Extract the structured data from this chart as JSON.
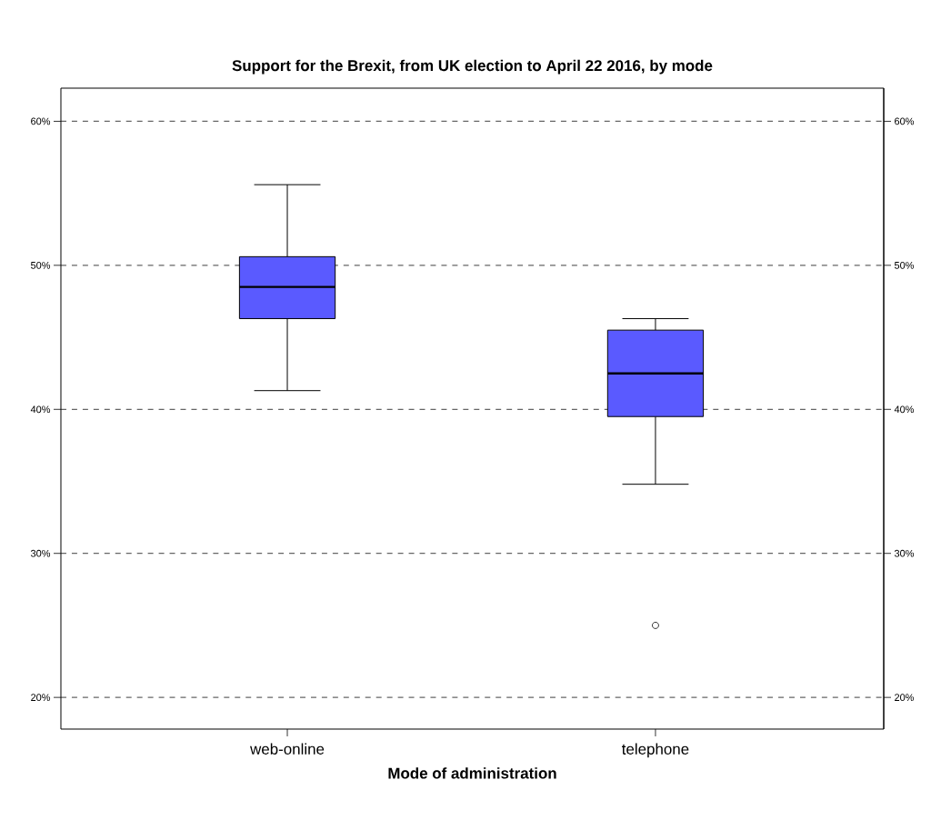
{
  "chart_data": {
    "type": "box",
    "title": "Support for the Brexit, from UK election to April 22 2016, by mode",
    "xlabel": "Mode of administration",
    "categories": [
      "web-online",
      "telephone"
    ],
    "color": "#5a5aff",
    "boxes": [
      {
        "low": 41.3,
        "q1": 46.3,
        "median": 48.5,
        "q3": 50.6,
        "high": 55.6
      },
      {
        "low": 34.8,
        "q1": 39.5,
        "median": 42.5,
        "q3": 45.5,
        "high": 46.3,
        "outliers": [
          25.0
        ]
      }
    ],
    "ylim": [
      17.8,
      62.3
    ],
    "yticks": [
      {
        "value": 20,
        "label": "20%"
      },
      {
        "value": 30,
        "label": "30%"
      },
      {
        "value": 40,
        "label": "40%"
      },
      {
        "value": 50,
        "label": "50%"
      },
      {
        "value": 60,
        "label": "60%"
      }
    ],
    "y2lim": [
      17.8,
      62.3
    ],
    "y2ticks": [
      {
        "value": 20,
        "label": "20%"
      },
      {
        "value": 30,
        "label": "30%"
      },
      {
        "value": 40,
        "label": "40%"
      },
      {
        "value": 50,
        "label": "50%"
      },
      {
        "value": 60,
        "label": "60%"
      }
    ],
    "grid": "y"
  }
}
